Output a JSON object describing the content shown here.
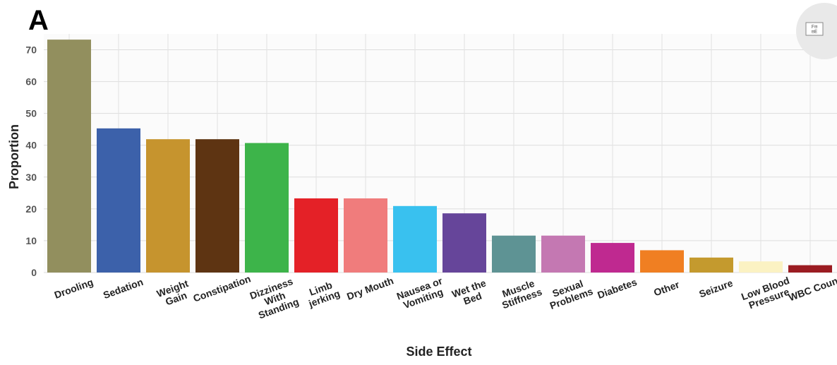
{
  "panel_label": "A",
  "toolbar": {
    "icon": "chart-options-icon",
    "icon_text": "F⊟\n⊟E"
  },
  "chart_data": {
    "type": "bar",
    "title": "",
    "xlabel": "Side Effect",
    "ylabel": "Proportion",
    "ylim": [
      0,
      75
    ],
    "yticks": [
      0,
      10,
      20,
      30,
      40,
      50,
      60,
      70
    ],
    "grid": true,
    "categories": [
      [
        "Drooling"
      ],
      [
        "Sedation"
      ],
      [
        "Weight",
        "Gain"
      ],
      [
        "Constipation"
      ],
      [
        "Dizziness",
        "With",
        "Standing"
      ],
      [
        "Limb",
        "jerking"
      ],
      [
        "Dry Mouth"
      ],
      [
        "Nausea or",
        "Vomiting"
      ],
      [
        "Wet the",
        "Bed"
      ],
      [
        "Muscle",
        "Stiffness"
      ],
      [
        "Sexual",
        "Problems"
      ],
      [
        "Diabetes"
      ],
      [
        "Other"
      ],
      [
        "Seizure"
      ],
      [
        "Low Blood",
        "Pressure"
      ],
      [
        "WBC Count"
      ]
    ],
    "values": [
      73.2,
      45.3,
      41.9,
      41.9,
      40.7,
      23.3,
      23.3,
      20.9,
      18.6,
      11.6,
      11.6,
      9.3,
      7.0,
      4.7,
      3.5,
      2.3
    ],
    "colors": [
      "#928f5e",
      "#3c61aa",
      "#c6942e",
      "#5e3412",
      "#3db44a",
      "#e42127",
      "#f07c7c",
      "#39c1ef",
      "#66459a",
      "#5e9394",
      "#c478b2",
      "#bf2990",
      "#f07f22",
      "#c49a2e",
      "#fbf2c3",
      "#9b1c22"
    ]
  }
}
